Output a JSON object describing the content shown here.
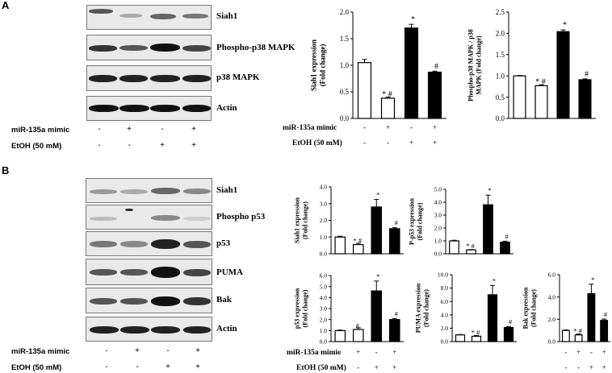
{
  "panel_a": {
    "letter": "A",
    "blot_labels": [
      "Siah1",
      "Phospho-p38 MAPK",
      "p38 MAPK",
      "Actin"
    ],
    "conditions": {
      "mimic_label": "miR-135a mimic",
      "etoh_label": "EtOH (50 mM)",
      "mimic_signs": [
        "-",
        "+",
        "-",
        "+"
      ],
      "etoh_signs": [
        "-",
        "-",
        "+",
        "+"
      ]
    }
  },
  "panel_b": {
    "letter": "B",
    "blot_labels": [
      "Siah1",
      "Phospho p53",
      "p53",
      "PUMA",
      "Bak",
      "Actin"
    ],
    "conditions": {
      "mimic_label": "miR-135a mimic",
      "etoh_label": "EtOH (50 mM)",
      "mimic_signs": [
        "-",
        "+",
        "-",
        "+"
      ],
      "etoh_signs": [
        "-",
        "-",
        "+",
        "+"
      ]
    }
  },
  "chart_data": [
    {
      "id": "a1",
      "type": "bar",
      "ylabel_lines": [
        "Siah1 expression",
        "(Fold change)"
      ],
      "ylim": [
        0,
        2.0
      ],
      "yticks": [
        "0.0",
        "0.5",
        "1.0",
        "1.5",
        "2.0"
      ],
      "values": [
        1.05,
        0.38,
        1.7,
        0.87
      ],
      "errors": [
        0.06,
        0.02,
        0.07,
        0.02
      ],
      "fills": [
        "#ffffff",
        "#ffffff",
        "#000000",
        "#000000"
      ],
      "annotations": [
        "",
        "* #",
        "*",
        "#"
      ],
      "conditions": {
        "mimic_label": "miR-135a mimic",
        "etoh_label": "EtOH (50 mM)",
        "mimic_signs": [
          "-",
          "+",
          "-",
          "+"
        ],
        "etoh_signs": [
          "-",
          "-",
          "+",
          "+"
        ]
      }
    },
    {
      "id": "a2",
      "type": "bar",
      "ylabel_lines": [
        "Phospho-p38 MAPK / p38",
        "MAPK (Fold change)"
      ],
      "ylim": [
        0,
        2.5
      ],
      "yticks": [
        "0.0",
        "0.5",
        "1.0",
        "1.5",
        "2.0",
        "2.5"
      ],
      "values": [
        1.0,
        0.77,
        2.04,
        0.91
      ],
      "errors": [
        0.01,
        0.02,
        0.04,
        0.02
      ],
      "fills": [
        "#ffffff",
        "#ffffff",
        "#000000",
        "#000000"
      ],
      "annotations": [
        "",
        "* #",
        "*",
        "#"
      ]
    },
    {
      "id": "b1",
      "type": "bar",
      "ylabel_lines": [
        "Siah1 expression",
        "(Fold change)"
      ],
      "ylim": [
        0,
        4.0
      ],
      "yticks": [
        "0.0",
        "1.0",
        "2.0",
        "3.0",
        "4.0"
      ],
      "values": [
        1.0,
        0.55,
        2.8,
        1.5
      ],
      "errors": [
        0.05,
        0.08,
        0.45,
        0.06
      ],
      "fills": [
        "#ffffff",
        "#ffffff",
        "#000000",
        "#000000"
      ],
      "annotations": [
        "",
        "* #",
        "*",
        "#"
      ]
    },
    {
      "id": "b2",
      "type": "bar",
      "ylabel_lines": [
        "P-p53 expression",
        "(Fold change)"
      ],
      "ylim": [
        0,
        5.0
      ],
      "yticks": [
        "0.0",
        "1.0",
        "2.0",
        "3.0",
        "4.0",
        "5.0"
      ],
      "values": [
        1.0,
        0.3,
        3.8,
        0.9
      ],
      "errors": [
        0.05,
        0.03,
        0.75,
        0.08
      ],
      "fills": [
        "#ffffff",
        "#ffffff",
        "#000000",
        "#000000"
      ],
      "annotations": [
        "",
        "* #",
        "*",
        "#"
      ]
    },
    {
      "id": "b3",
      "type": "bar",
      "ylabel_lines": [
        "p53 expression",
        "(Fold change)"
      ],
      "ylim": [
        0,
        6.0
      ],
      "yticks": [
        "0.0",
        "1.0",
        "2.0",
        "3.0",
        "4.0",
        "5.0",
        "6.0"
      ],
      "values": [
        1.0,
        1.1,
        4.6,
        2.0
      ],
      "errors": [
        0.05,
        0.15,
        0.9,
        0.1
      ],
      "fills": [
        "#ffffff",
        "#ffffff",
        "#000000",
        "#000000"
      ],
      "annotations": [
        "",
        "#",
        "*",
        "#"
      ],
      "conditions": {
        "mimic_label": "miR-135a mimic",
        "etoh_label": "EtOH (50 mM)",
        "mimic_signs": [
          "-",
          "+",
          "-",
          "+"
        ],
        "etoh_signs": [
          "-",
          "-",
          "+",
          "+"
        ]
      }
    },
    {
      "id": "b4",
      "type": "bar",
      "ylabel_lines": [
        "PUMA expression",
        "(Fold change)"
      ],
      "ylim": [
        0,
        10.0
      ],
      "yticks": [
        "0.0",
        "2.0",
        "4.0",
        "6.0",
        "8.0",
        "10.0"
      ],
      "values": [
        1.0,
        0.8,
        7.0,
        2.1
      ],
      "errors": [
        0.05,
        0.1,
        1.4,
        0.15
      ],
      "fills": [
        "#ffffff",
        "#ffffff",
        "#000000",
        "#000000"
      ],
      "annotations": [
        "",
        "* #",
        "*",
        "#"
      ]
    },
    {
      "id": "b5",
      "type": "bar",
      "ylabel_lines": [
        "Bak expression",
        "(Fold change)"
      ],
      "ylim": [
        0,
        6.0
      ],
      "yticks": [
        "0.0",
        "2.0",
        "4.0",
        "6.0"
      ],
      "values": [
        1.0,
        0.6,
        4.3,
        1.9
      ],
      "errors": [
        0.05,
        0.08,
        0.85,
        0.12
      ],
      "fills": [
        "#ffffff",
        "#ffffff",
        "#000000",
        "#000000"
      ],
      "annotations": [
        "",
        "* #",
        "*",
        "#"
      ],
      "conditions": {
        "mimic_signs": [
          "-",
          "+",
          "-",
          "+"
        ],
        "etoh_signs": [
          "-",
          "-",
          "+",
          "+"
        ]
      }
    }
  ]
}
